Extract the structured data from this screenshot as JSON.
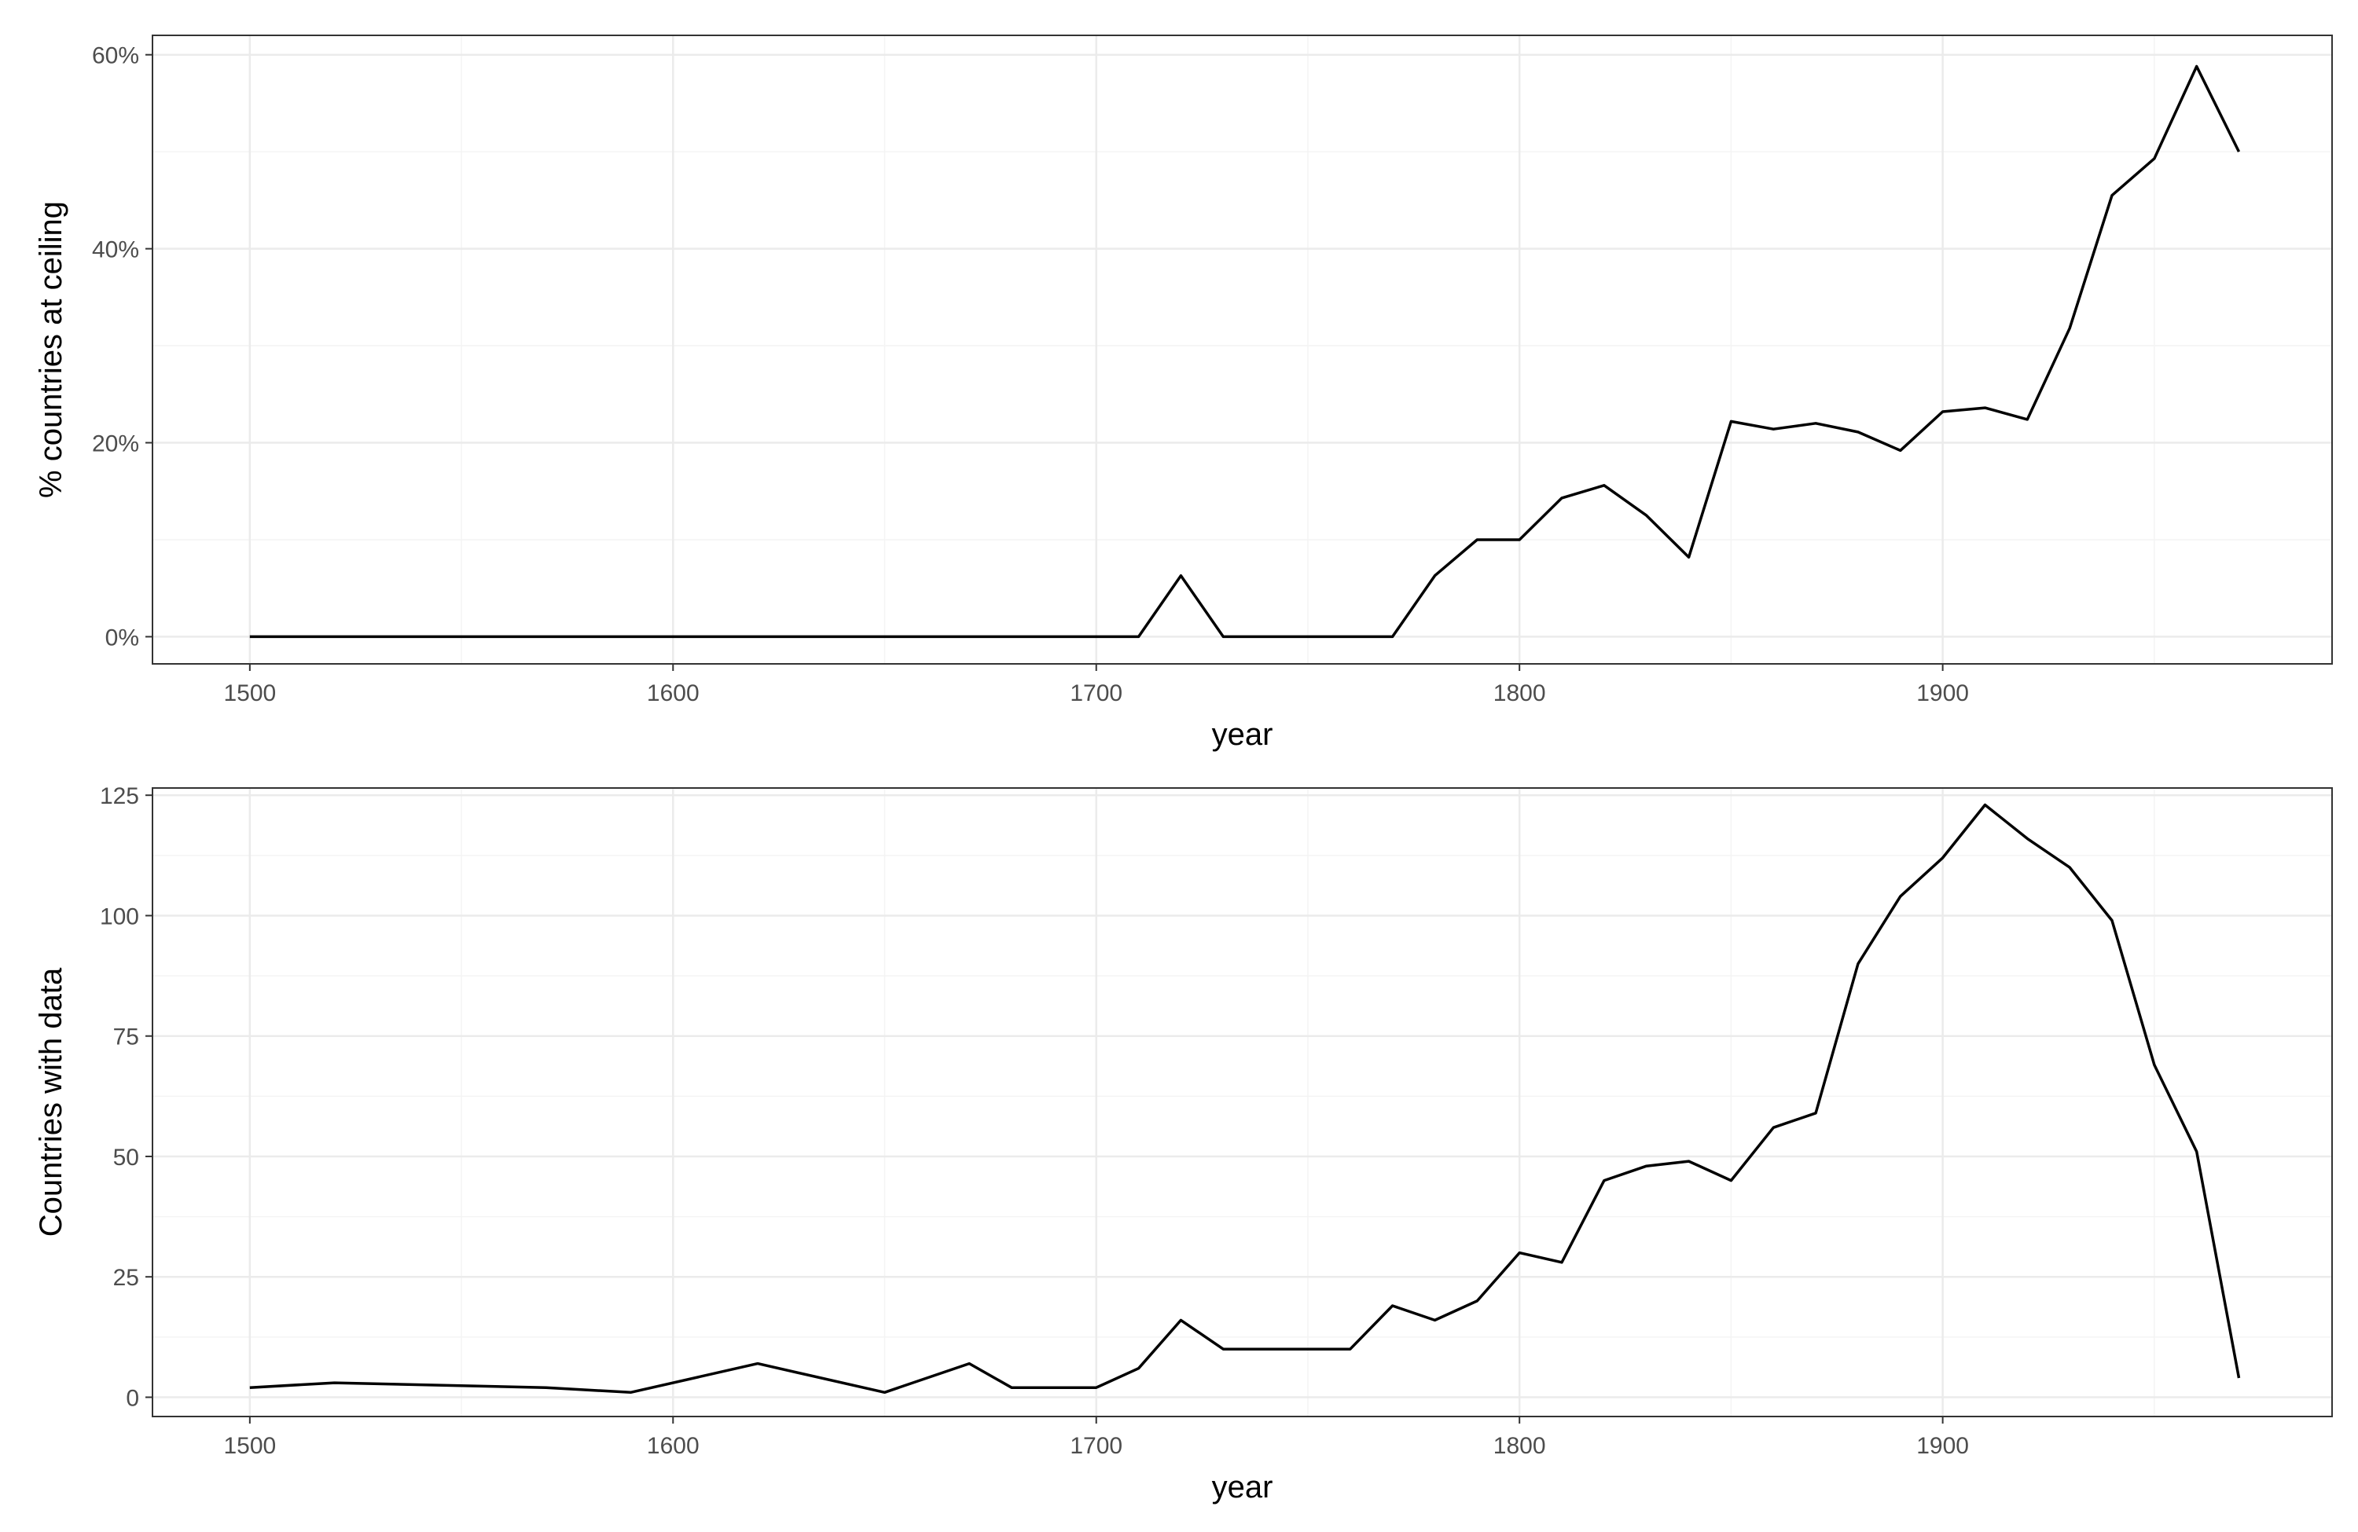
{
  "chart_data": [
    {
      "type": "line",
      "title": "",
      "xlabel": "year",
      "ylabel": "% countries at ceiling",
      "xlim": [
        1477,
        1992
      ],
      "ylim": [
        -2.8,
        62
      ],
      "x_ticks": [
        1500,
        1600,
        1700,
        1800,
        1900
      ],
      "x_tick_labels": [
        "1500",
        "1600",
        "1700",
        "1800",
        "1900"
      ],
      "y_ticks": [
        0,
        20,
        40,
        60
      ],
      "y_tick_labels": [
        "0%",
        "20%",
        "40%",
        "60%"
      ],
      "grid": true,
      "legend": "none",
      "line_color": "#000000",
      "x": [
        1500,
        1520,
        1570,
        1590,
        1620,
        1650,
        1670,
        1680,
        1700,
        1710,
        1720,
        1730,
        1740,
        1750,
        1760,
        1770,
        1780,
        1790,
        1800,
        1810,
        1820,
        1830,
        1840,
        1850,
        1860,
        1870,
        1880,
        1890,
        1900,
        1910,
        1920,
        1930,
        1940,
        1950,
        1960,
        1970
      ],
      "values": [
        0,
        0,
        0,
        0,
        0,
        0,
        0,
        0,
        0,
        0,
        6.3,
        0,
        0,
        0,
        0,
        0,
        6.3,
        10,
        10,
        14.3,
        15.6,
        12.5,
        8.2,
        22.2,
        21.4,
        22,
        21.1,
        19.2,
        23.2,
        23.6,
        22.4,
        31.8,
        45.5,
        49.3,
        58.8,
        50
      ]
    },
    {
      "type": "line",
      "title": "",
      "xlabel": "year",
      "ylabel": "Countries with data",
      "xlim": [
        1477,
        1992
      ],
      "ylim": [
        -4,
        126.5
      ],
      "x_ticks": [
        1500,
        1600,
        1700,
        1800,
        1900
      ],
      "x_tick_labels": [
        "1500",
        "1600",
        "1700",
        "1800",
        "1900"
      ],
      "y_ticks": [
        0,
        25,
        50,
        75,
        100,
        125
      ],
      "y_tick_labels": [
        "0",
        "25",
        "50",
        "75",
        "100",
        "125"
      ],
      "grid": true,
      "legend": "none",
      "line_color": "#000000",
      "x": [
        1500,
        1520,
        1570,
        1590,
        1620,
        1650,
        1670,
        1680,
        1700,
        1710,
        1720,
        1730,
        1740,
        1750,
        1760,
        1770,
        1780,
        1790,
        1800,
        1810,
        1820,
        1830,
        1840,
        1850,
        1860,
        1870,
        1880,
        1890,
        1900,
        1910,
        1920,
        1930,
        1940,
        1950,
        1960,
        1970
      ],
      "values": [
        2,
        3,
        2,
        1,
        7,
        1,
        7,
        2,
        2,
        6,
        16,
        10,
        10,
        10,
        10,
        19,
        16,
        20,
        30,
        28,
        45,
        48,
        49,
        45,
        56,
        59,
        90,
        104,
        112,
        123,
        116,
        110,
        99,
        69,
        51,
        4
      ]
    }
  ]
}
